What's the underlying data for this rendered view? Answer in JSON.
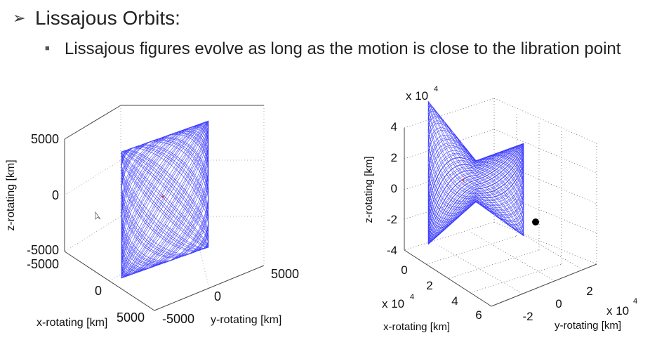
{
  "slide": {
    "heading_marker": "➢",
    "heading": "Lissajous Orbits:",
    "bullet_marker": "■",
    "bullet_text": "Lissajous figures evolve as long as the motion is close to the libration point"
  },
  "chart_data": [
    {
      "type": "scatter",
      "title": "",
      "zlabel": "z-rotating [km]",
      "xlabel": "x-rotating [km]",
      "ylabel": "y-rotating [km]",
      "z_ticks": [
        "5000",
        "0",
        "-5000"
      ],
      "x_ticks": [
        "-5000",
        "0",
        "5000"
      ],
      "y_ticks": [
        "-5000",
        "0",
        "5000"
      ],
      "zlim": [
        -5000,
        5000
      ],
      "xlim": [
        -5000,
        5000
      ],
      "ylim": [
        -5000,
        5000
      ],
      "series": [
        {
          "color": "#1a1aff"
        }
      ],
      "grid": true
    },
    {
      "type": "scatter",
      "title": "",
      "scale_label": "x 10",
      "scale_exp": "4",
      "zlabel": "z-rotating [km]",
      "xlabel": "x-rotating [km]",
      "ylabel": "y-rotating [km]",
      "z_ticks": [
        "4",
        "2",
        "0",
        "-2",
        "-4"
      ],
      "x_ticks": [
        "0",
        "2",
        "4",
        "6"
      ],
      "y_ticks": [
        "-2",
        "0",
        "2"
      ],
      "zlim": [
        -4,
        4
      ],
      "xlim": [
        0,
        6
      ],
      "ylim": [
        -2,
        2
      ],
      "series": [
        {
          "color": "#1a1aff"
        }
      ],
      "marker_color": "#000000",
      "grid": true
    }
  ]
}
